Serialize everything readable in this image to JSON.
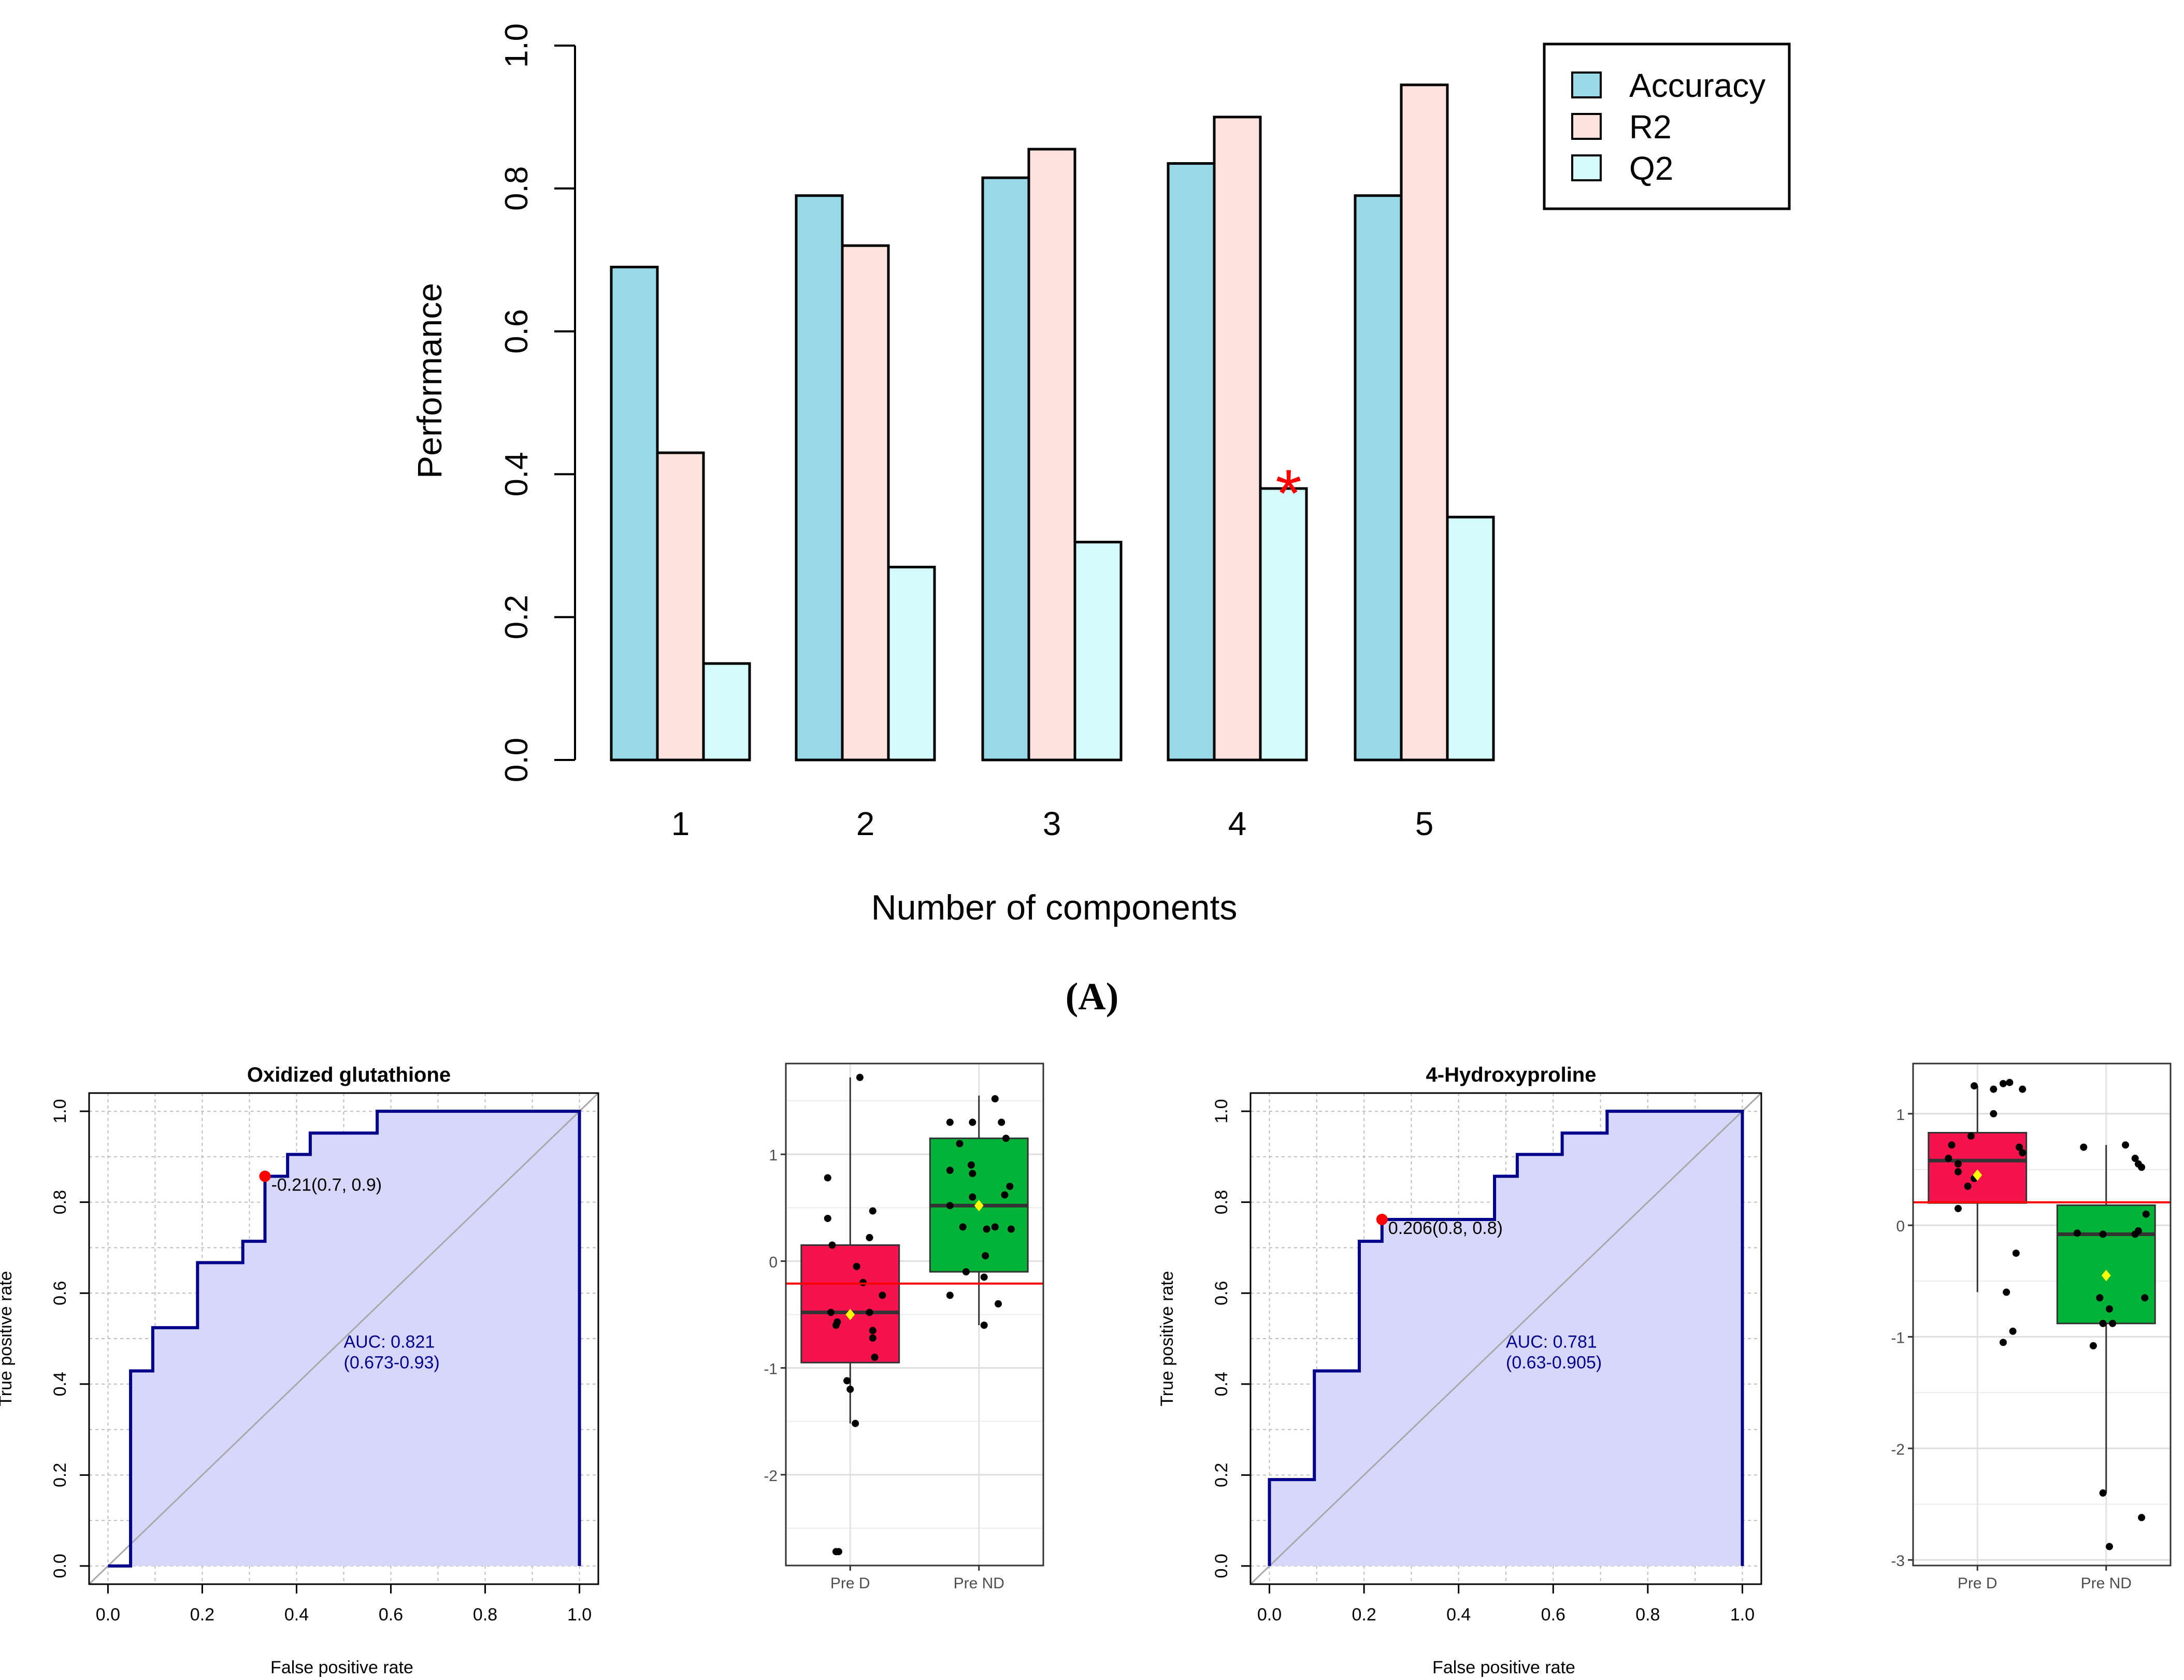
{
  "panel_label": "(A)",
  "colors": {
    "accuracy": "#99d8e6",
    "r2": "#fde2dd",
    "q2": "#d4fcfd",
    "roc_fill": "#d7d7fc",
    "roc_line": "#00008b",
    "box_d": "#f5134e",
    "box_nd": "#03b338",
    "cutline": "#ff0000",
    "mean_marker": "#ffff00",
    "optimal_point": "#ff0000"
  },
  "chart_data": [
    {
      "id": "performance",
      "type": "bar",
      "title": "",
      "xlabel": "Number of components",
      "ylabel": "Performance",
      "ylim": [
        0,
        1
      ],
      "yticks": [
        "0.0",
        "0.2",
        "0.4",
        "0.6",
        "0.8",
        "1.0"
      ],
      "categories": [
        "1",
        "2",
        "3",
        "4",
        "5"
      ],
      "legend_position": "top-right",
      "series": [
        {
          "name": "Accuracy",
          "values": [
            0.69,
            0.79,
            0.815,
            0.835,
            0.79
          ]
        },
        {
          "name": "R2",
          "values": [
            0.43,
            0.72,
            0.855,
            0.9,
            0.945
          ]
        },
        {
          "name": "Q2",
          "values": [
            0.135,
            0.27,
            0.305,
            0.38,
            0.34
          ]
        }
      ],
      "best_marker": {
        "symbol": "*",
        "category": "4",
        "series": "Q2"
      }
    },
    {
      "id": "roc_oxidized_glutathione",
      "type": "line",
      "title": "Oxidized glutathione",
      "xlabel": "False positive rate",
      "ylabel": "True positive rate",
      "xlim": [
        0,
        1
      ],
      "ylim": [
        0,
        1
      ],
      "xticks": [
        "0.0",
        "0.2",
        "0.4",
        "0.6",
        "0.8",
        "1.0"
      ],
      "yticks": [
        "0.0",
        "0.2",
        "0.4",
        "0.6",
        "0.8",
        "1.0"
      ],
      "roc_points": [
        [
          0,
          0
        ],
        [
          0.048,
          0
        ],
        [
          0.048,
          0.429
        ],
        [
          0.095,
          0.429
        ],
        [
          0.095,
          0.524
        ],
        [
          0.19,
          0.524
        ],
        [
          0.19,
          0.667
        ],
        [
          0.286,
          0.667
        ],
        [
          0.286,
          0.714
        ],
        [
          0.333,
          0.714
        ],
        [
          0.333,
          0.857
        ],
        [
          0.381,
          0.857
        ],
        [
          0.381,
          0.905
        ],
        [
          0.429,
          0.905
        ],
        [
          0.429,
          0.952
        ],
        [
          0.571,
          0.952
        ],
        [
          0.571,
          1
        ],
        [
          1,
          1
        ]
      ],
      "optimal_point": [
        0.333,
        0.857
      ],
      "optimal_label": "-0.21(0.7, 0.9)",
      "auc_label": "AUC: 0.821",
      "ci_label": "(0.673-0.93)"
    },
    {
      "id": "box_oxidized_glutathione",
      "type": "box",
      "categories": [
        "Pre D",
        "Pre ND"
      ],
      "ylim": [
        -2.85,
        1.85
      ],
      "yticks": [
        -2,
        -1,
        0,
        1
      ],
      "ytick_labels": [
        "-2",
        "-1",
        "0",
        "1"
      ],
      "cutoff": -0.21,
      "boxes": [
        {
          "name": "Pre D",
          "q1": -0.95,
          "median": -0.48,
          "q3": 0.15,
          "whisker_low": -1.52,
          "whisker_high": 1.72,
          "mean": -0.5
        },
        {
          "name": "Pre ND",
          "q1": -0.1,
          "median": 0.52,
          "q3": 1.15,
          "whisker_low": -0.6,
          "whisker_high": 1.55,
          "mean": 0.52
        }
      ],
      "points": [
        {
          "g": 0,
          "x": -0.35,
          "y": 0.78
        },
        {
          "g": 0,
          "x": -0.35,
          "y": 0.4
        },
        {
          "g": 0,
          "x": -0.28,
          "y": 0.15
        },
        {
          "g": 0,
          "x": -0.3,
          "y": -0.48
        },
        {
          "g": 0,
          "x": -0.2,
          "y": -0.57
        },
        {
          "g": 0,
          "x": -0.22,
          "y": -0.6
        },
        {
          "g": 0,
          "x": 0.1,
          "y": -0.05
        },
        {
          "g": 0,
          "x": 0.2,
          "y": -0.2
        },
        {
          "g": 0,
          "x": 0.3,
          "y": 0.22
        },
        {
          "g": 0,
          "x": 0.35,
          "y": 0.47
        },
        {
          "g": 0,
          "x": 0.3,
          "y": -0.48
        },
        {
          "g": 0,
          "x": 0.35,
          "y": -0.65
        },
        {
          "g": 0,
          "x": 0.35,
          "y": -0.72
        },
        {
          "g": 0,
          "x": 0.38,
          "y": -0.9
        },
        {
          "g": 0,
          "x": 0.5,
          "y": -0.32
        },
        {
          "g": 0,
          "x": -0.05,
          "y": -1.12
        },
        {
          "g": 0,
          "x": 0.0,
          "y": -1.2
        },
        {
          "g": 0,
          "x": 0.08,
          "y": -1.52
        },
        {
          "g": 0,
          "x": 0.15,
          "y": 1.72
        },
        {
          "g": 0,
          "x": -0.22,
          "y": -2.72
        },
        {
          "g": 0,
          "x": -0.18,
          "y": -2.72
        },
        {
          "g": 1,
          "x": -0.45,
          "y": 1.3
        },
        {
          "g": 1,
          "x": -0.1,
          "y": 1.3
        },
        {
          "g": 1,
          "x": -0.3,
          "y": 1.1
        },
        {
          "g": 1,
          "x": 0.25,
          "y": 1.52
        },
        {
          "g": 1,
          "x": 0.35,
          "y": 1.3
        },
        {
          "g": 1,
          "x": 0.42,
          "y": 1.15
        },
        {
          "g": 1,
          "x": -0.45,
          "y": 0.85
        },
        {
          "g": 1,
          "x": -0.12,
          "y": 0.9
        },
        {
          "g": 1,
          "x": -0.1,
          "y": 0.82
        },
        {
          "g": 1,
          "x": -0.1,
          "y": 0.6
        },
        {
          "g": 1,
          "x": 0.4,
          "y": 0.62
        },
        {
          "g": 1,
          "x": 0.48,
          "y": 0.7
        },
        {
          "g": 1,
          "x": -0.45,
          "y": 0.52
        },
        {
          "g": 1,
          "x": -0.25,
          "y": 0.32
        },
        {
          "g": 1,
          "x": 0.12,
          "y": 0.3
        },
        {
          "g": 1,
          "x": 0.25,
          "y": 0.32
        },
        {
          "g": 1,
          "x": 0.5,
          "y": 0.3
        },
        {
          "g": 1,
          "x": 0.1,
          "y": 0.05
        },
        {
          "g": 1,
          "x": -0.2,
          "y": -0.1
        },
        {
          "g": 1,
          "x": 0.08,
          "y": -0.15
        },
        {
          "g": 1,
          "x": -0.45,
          "y": -0.32
        },
        {
          "g": 1,
          "x": 0.3,
          "y": -0.4
        },
        {
          "g": 1,
          "x": 0.08,
          "y": -0.6
        }
      ]
    },
    {
      "id": "roc_4_hydroxyproline",
      "type": "line",
      "title": "4-Hydroxyproline",
      "xlabel": "False positive rate",
      "ylabel": "True positive rate",
      "xlim": [
        0,
        1
      ],
      "ylim": [
        0,
        1
      ],
      "xticks": [
        "0.0",
        "0.2",
        "0.4",
        "0.6",
        "0.8",
        "1.0"
      ],
      "yticks": [
        "0.0",
        "0.2",
        "0.4",
        "0.6",
        "0.8",
        "1.0"
      ],
      "roc_points": [
        [
          0,
          0
        ],
        [
          0,
          0.19
        ],
        [
          0.095,
          0.19
        ],
        [
          0.095,
          0.429
        ],
        [
          0.19,
          0.429
        ],
        [
          0.19,
          0.714
        ],
        [
          0.238,
          0.714
        ],
        [
          0.238,
          0.762
        ],
        [
          0.476,
          0.762
        ],
        [
          0.476,
          0.857
        ],
        [
          0.524,
          0.857
        ],
        [
          0.524,
          0.905
        ],
        [
          0.619,
          0.905
        ],
        [
          0.619,
          0.952
        ],
        [
          0.714,
          0.952
        ],
        [
          0.714,
          1
        ],
        [
          1,
          1
        ]
      ],
      "optimal_point": [
        0.238,
        0.762
      ],
      "optimal_label": "0.206(0.8, 0.8)",
      "auc_label": "AUC: 0.781",
      "ci_label": "(0.63-0.905)"
    },
    {
      "id": "box_4_hydroxyproline",
      "type": "box",
      "categories": [
        "Pre D",
        "Pre ND"
      ],
      "ylim": [
        -3.05,
        1.45
      ],
      "yticks": [
        -3,
        -2,
        -1,
        0,
        1
      ],
      "ytick_labels": [
        "-3",
        "-2",
        "-1",
        "0",
        "1"
      ],
      "cutoff": 0.206,
      "boxes": [
        {
          "name": "Pre D",
          "q1": 0.2,
          "median": 0.58,
          "q3": 0.83,
          "whisker_low": -0.6,
          "whisker_high": 1.25,
          "mean": 0.45
        },
        {
          "name": "Pre ND",
          "q1": -0.88,
          "median": -0.08,
          "q3": 0.18,
          "whisker_low": -2.4,
          "whisker_high": 0.72,
          "mean": -0.45
        }
      ],
      "points": [
        {
          "g": 0,
          "x": -0.05,
          "y": 1.25
        },
        {
          "g": 0,
          "x": 0.25,
          "y": 1.22
        },
        {
          "g": 0,
          "x": 0.4,
          "y": 1.27
        },
        {
          "g": 0,
          "x": 0.5,
          "y": 1.28
        },
        {
          "g": 0,
          "x": 0.7,
          "y": 1.22
        },
        {
          "g": 0,
          "x": 0.25,
          "y": 1.0
        },
        {
          "g": 0,
          "x": -0.4,
          "y": 0.72
        },
        {
          "g": 0,
          "x": -0.45,
          "y": 0.6
        },
        {
          "g": 0,
          "x": 0.65,
          "y": 0.7
        },
        {
          "g": 0,
          "x": 0.7,
          "y": 0.65
        },
        {
          "g": 0,
          "x": -0.3,
          "y": 0.55
        },
        {
          "g": 0,
          "x": -0.3,
          "y": 0.48
        },
        {
          "g": 0,
          "x": -0.05,
          "y": 0.42
        },
        {
          "g": 0,
          "x": -0.15,
          "y": 0.35
        },
        {
          "g": 0,
          "x": -0.3,
          "y": 0.15
        },
        {
          "g": 0,
          "x": -0.1,
          "y": 0.8
        },
        {
          "g": 0,
          "x": 0.45,
          "y": -0.6
        },
        {
          "g": 0,
          "x": 0.6,
          "y": -0.25
        },
        {
          "g": 0,
          "x": 0.4,
          "y": -1.05
        },
        {
          "g": 0,
          "x": 0.55,
          "y": -0.95
        },
        {
          "g": 1,
          "x": -0.35,
          "y": 0.7
        },
        {
          "g": 1,
          "x": 0.3,
          "y": 0.72
        },
        {
          "g": 1,
          "x": 0.45,
          "y": 0.6
        },
        {
          "g": 1,
          "x": 0.5,
          "y": 0.55
        },
        {
          "g": 1,
          "x": 0.55,
          "y": 0.52
        },
        {
          "g": 1,
          "x": 0.62,
          "y": 0.1
        },
        {
          "g": 1,
          "x": 0.45,
          "y": -0.08
        },
        {
          "g": 1,
          "x": 0.5,
          "y": -0.05
        },
        {
          "g": 1,
          "x": -0.45,
          "y": -0.07
        },
        {
          "g": 1,
          "x": -0.05,
          "y": -0.08
        },
        {
          "g": 1,
          "x": -0.1,
          "y": -0.65
        },
        {
          "g": 1,
          "x": 0.6,
          "y": -0.65
        },
        {
          "g": 1,
          "x": 0.05,
          "y": -0.75
        },
        {
          "g": 1,
          "x": 0.1,
          "y": -0.88
        },
        {
          "g": 1,
          "x": -0.05,
          "y": -0.88
        },
        {
          "g": 1,
          "x": -0.2,
          "y": -1.08
        },
        {
          "g": 1,
          "x": -0.05,
          "y": -2.4
        },
        {
          "g": 1,
          "x": 0.55,
          "y": -2.62
        },
        {
          "g": 1,
          "x": 0.05,
          "y": -2.88
        }
      ]
    }
  ]
}
